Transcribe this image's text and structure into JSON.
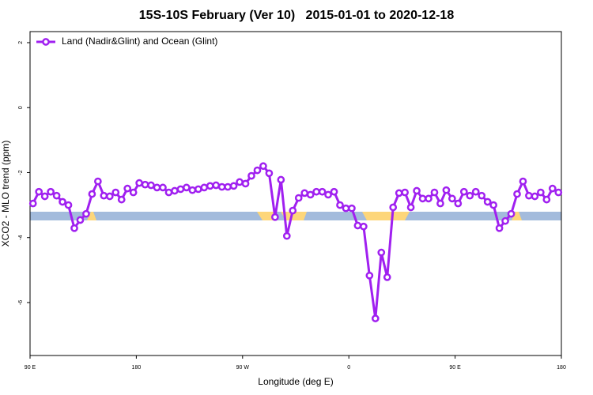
{
  "chart_data": {
    "type": "line",
    "title": "15S-10S February (Ver 10)   2015-01-01 to 2020-12-18",
    "x_label": "Longitude (deg E)",
    "y_label": "XCO2 - MLO trend (ppm)",
    "xlim": [
      90,
      540
    ],
    "ylim": [
      -7.63,
      2.34
    ],
    "xticks": [
      {
        "value": 90,
        "label": "90 E"
      },
      {
        "value": 180,
        "label": "180"
      },
      {
        "value": 270,
        "label": "90 W"
      },
      {
        "value": 360,
        "label": "0"
      },
      {
        "value": 450,
        "label": "90 E"
      },
      {
        "value": 540,
        "label": "180"
      }
    ],
    "yticks": [
      2,
      0,
      -2,
      -4,
      -6
    ],
    "legend": "top-left",
    "x": [
      92.5,
      97.5,
      102.5,
      107.5,
      112.5,
      117.5,
      122.5,
      127.5,
      132.5,
      137.5,
      142.5,
      147.5,
      152.5,
      157.5,
      162.5,
      167.5,
      172.5,
      177.5,
      182.5,
      187.5,
      192.5,
      197.5,
      202.5,
      207.5,
      212.5,
      217.5,
      222.5,
      227.5,
      232.5,
      237.5,
      242.5,
      247.5,
      252.5,
      257.5,
      262.5,
      267.5,
      272.5,
      277.5,
      282.5,
      287.5,
      292.5,
      297.5,
      302.5,
      307.5,
      312.5,
      317.5,
      322.5,
      327.5,
      332.5,
      337.5,
      342.5,
      347.5,
      352.5,
      357.5,
      362.5,
      367.5,
      372.5,
      377.5,
      382.5,
      387.5,
      392.5,
      397.5,
      402.5,
      407.5,
      412.5,
      417.5,
      422.5,
      427.5,
      432.5,
      437.5,
      442.5,
      447.5,
      452.5,
      457.5,
      462.5,
      467.5,
      472.5,
      477.5,
      482.5,
      487.5,
      492.5,
      497.5,
      502.5,
      507.5,
      512.5,
      517.5,
      522.5,
      527.5,
      532.5,
      537.5
    ],
    "series": [
      {
        "name": "Land (Nadir&Glint) and Ocean (Glint)",
        "color": "#a020f0",
        "values": [
          -2.95,
          -2.59,
          -2.73,
          -2.59,
          -2.71,
          -2.9,
          -3.0,
          -3.71,
          -3.46,
          -3.27,
          -2.66,
          -2.27,
          -2.71,
          -2.73,
          -2.61,
          -2.83,
          -2.49,
          -2.61,
          -2.32,
          -2.37,
          -2.39,
          -2.46,
          -2.46,
          -2.61,
          -2.56,
          -2.51,
          -2.46,
          -2.54,
          -2.51,
          -2.46,
          -2.41,
          -2.39,
          -2.44,
          -2.44,
          -2.41,
          -2.29,
          -2.34,
          -2.1,
          -1.93,
          -1.8,
          -2.02,
          -3.37,
          -2.22,
          -3.95,
          -3.17,
          -2.78,
          -2.63,
          -2.68,
          -2.59,
          -2.59,
          -2.68,
          -2.59,
          -3.0,
          -3.1,
          -3.1,
          -3.63,
          -3.66,
          -5.17,
          -6.49,
          -4.46,
          -5.22,
          -3.07,
          -2.63,
          -2.61,
          -3.07,
          -2.56,
          -2.8,
          -2.8,
          -2.61,
          -2.95,
          -2.54,
          -2.8,
          -2.95,
          -2.59,
          -2.71,
          -2.59,
          -2.71,
          -2.9,
          -3.0,
          -3.71,
          -3.49,
          -3.27,
          -2.66,
          -2.27,
          -2.71,
          -2.73,
          -2.61,
          -2.83,
          -2.49,
          -2.61
        ]
      }
    ]
  }
}
